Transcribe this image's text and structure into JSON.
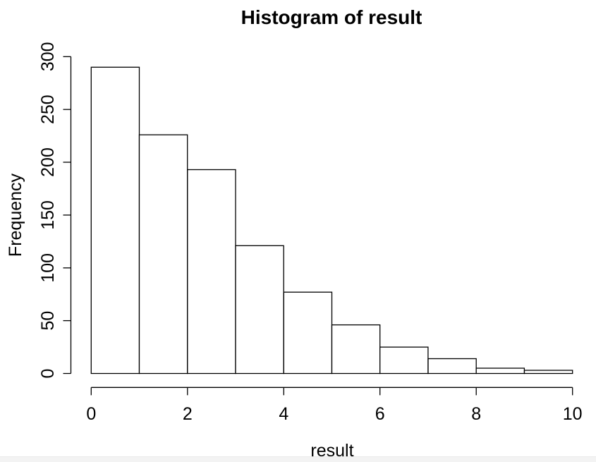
{
  "chart_data": {
    "type": "bar",
    "subtype": "histogram",
    "title": "Histogram of result",
    "xlabel": "result",
    "ylabel": "Frequency",
    "bin_edges": [
      0,
      1,
      2,
      3,
      4,
      5,
      6,
      7,
      8,
      9,
      10
    ],
    "counts": [
      290,
      226,
      193,
      121,
      77,
      46,
      25,
      14,
      5,
      3
    ],
    "x_ticks": [
      0,
      2,
      4,
      6,
      8,
      10
    ],
    "y_ticks": [
      0,
      50,
      100,
      150,
      200,
      250,
      300
    ],
    "xlim": [
      0,
      10
    ],
    "ylim": [
      0,
      300
    ],
    "grid": false,
    "legend": null,
    "bar_fill": "#ffffff",
    "bar_stroke": "#000000",
    "axis_color": "#000000",
    "text_color": "#000000",
    "background_color": "#ffffff"
  }
}
